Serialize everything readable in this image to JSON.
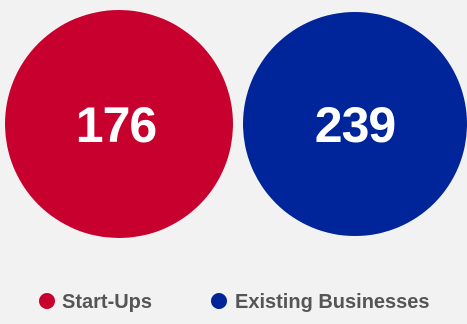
{
  "chart_data": {
    "type": "bubble",
    "title": "",
    "series": [
      {
        "name": "Start-Ups",
        "value": 176,
        "label": "176",
        "color": "#c8002d"
      },
      {
        "name": "Existing Businesses",
        "value": 239,
        "label": "239",
        "color": "#00259a"
      }
    ],
    "legend_position": "bottom-right"
  }
}
